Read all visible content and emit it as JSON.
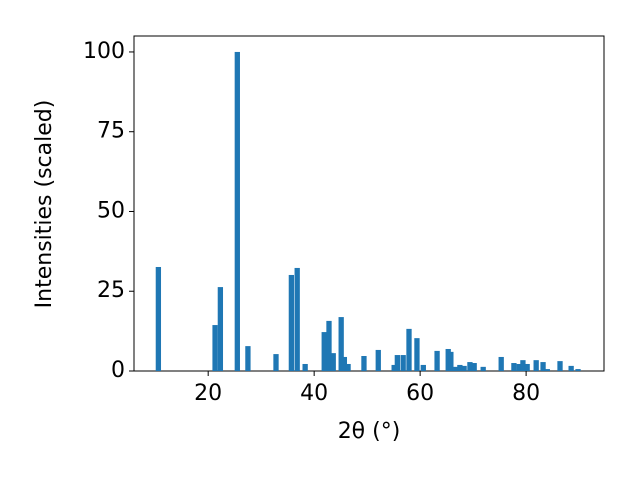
{
  "chart_data": {
    "type": "bar",
    "xlabel": "2θ (°)",
    "ylabel": "Intensities (scaled)",
    "x": [
      10.6,
      21.3,
      22.3,
      25.5,
      27.5,
      32.8,
      35.7,
      36.8,
      38.3,
      41.9,
      42.8,
      43.6,
      45.1,
      45.7,
      46.4,
      49.4,
      52.1,
      55.1,
      55.7,
      56.8,
      57.9,
      59.4,
      60.6,
      63.2,
      65.3,
      65.8,
      66.8,
      67.5,
      68.3,
      69.4,
      70.2,
      71.9,
      75.3,
      77.7,
      78.7,
      79.4,
      80.2,
      81.9,
      83.2,
      84.0,
      86.4,
      88.5,
      89.8
    ],
    "values": [
      32.6,
      14.4,
      26.3,
      100,
      7.8,
      5.3,
      30.1,
      32.3,
      2.2,
      12.2,
      15.7,
      5.6,
      16.9,
      4.4,
      2.2,
      4.7,
      6.6,
      1.9,
      5.0,
      5.0,
      13.2,
      10.3,
      1.9,
      6.3,
      6.9,
      6.0,
      1.3,
      1.9,
      1.6,
      2.8,
      2.5,
      1.3,
      4.4,
      2.5,
      2.2,
      3.4,
      2.2,
      3.4,
      2.8,
      0.6,
      3.1,
      1.6,
      0.6
    ],
    "color": "#1f77b4",
    "xlim": [
      6.0,
      94.7
    ],
    "xticks": [
      20,
      40,
      60,
      80
    ],
    "ylim": [
      0,
      105
    ],
    "yticks": [
      0,
      25,
      50,
      75,
      100
    ],
    "grid": false
  }
}
